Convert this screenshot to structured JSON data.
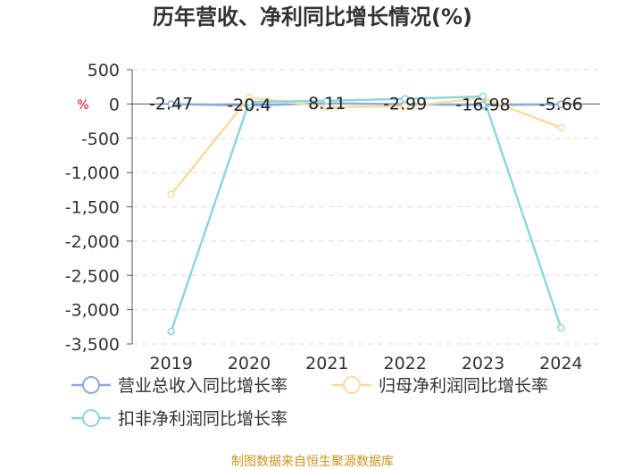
{
  "chart_data": {
    "type": "line",
    "title": "历年营收、净利同比增长情况(%)",
    "ylabel": "%",
    "xlabel": "",
    "categories": [
      "2019",
      "2020",
      "2021",
      "2022",
      "2023",
      "2024"
    ],
    "ylim": [
      -3500,
      500
    ],
    "yticks": [
      500,
      0,
      -500,
      -1000,
      -1500,
      -2000,
      -2500,
      -3000,
      -3500
    ],
    "ytick_labels": [
      "500",
      "0",
      "-500",
      "-1,000",
      "-1,500",
      "-2,000",
      "-2,500",
      "-3,000",
      "-3,500"
    ],
    "grid": true,
    "legend_position": "bottom",
    "series": [
      {
        "name": "营业总收入同比增长率",
        "color": "#8faadc",
        "values": [
          -2.47,
          -20.4,
          8.11,
          -2.99,
          -16.98,
          -5.66
        ],
        "labels": [
          "-2.47",
          "-20.4",
          "8.11",
          "-2.99",
          "-16.98",
          "-5.66"
        ]
      },
      {
        "name": "归母净利润同比增长率",
        "color": "#fbdca0",
        "values": [
          -1320,
          95,
          -45,
          -35,
          85,
          -345
        ]
      },
      {
        "name": "扣非净利润同比增长率",
        "color": "#8fd6dc",
        "values": [
          -3320,
          30,
          45,
          75,
          110,
          -3265
        ]
      }
    ],
    "source": "制图数据来自恒生聚源数据库"
  }
}
